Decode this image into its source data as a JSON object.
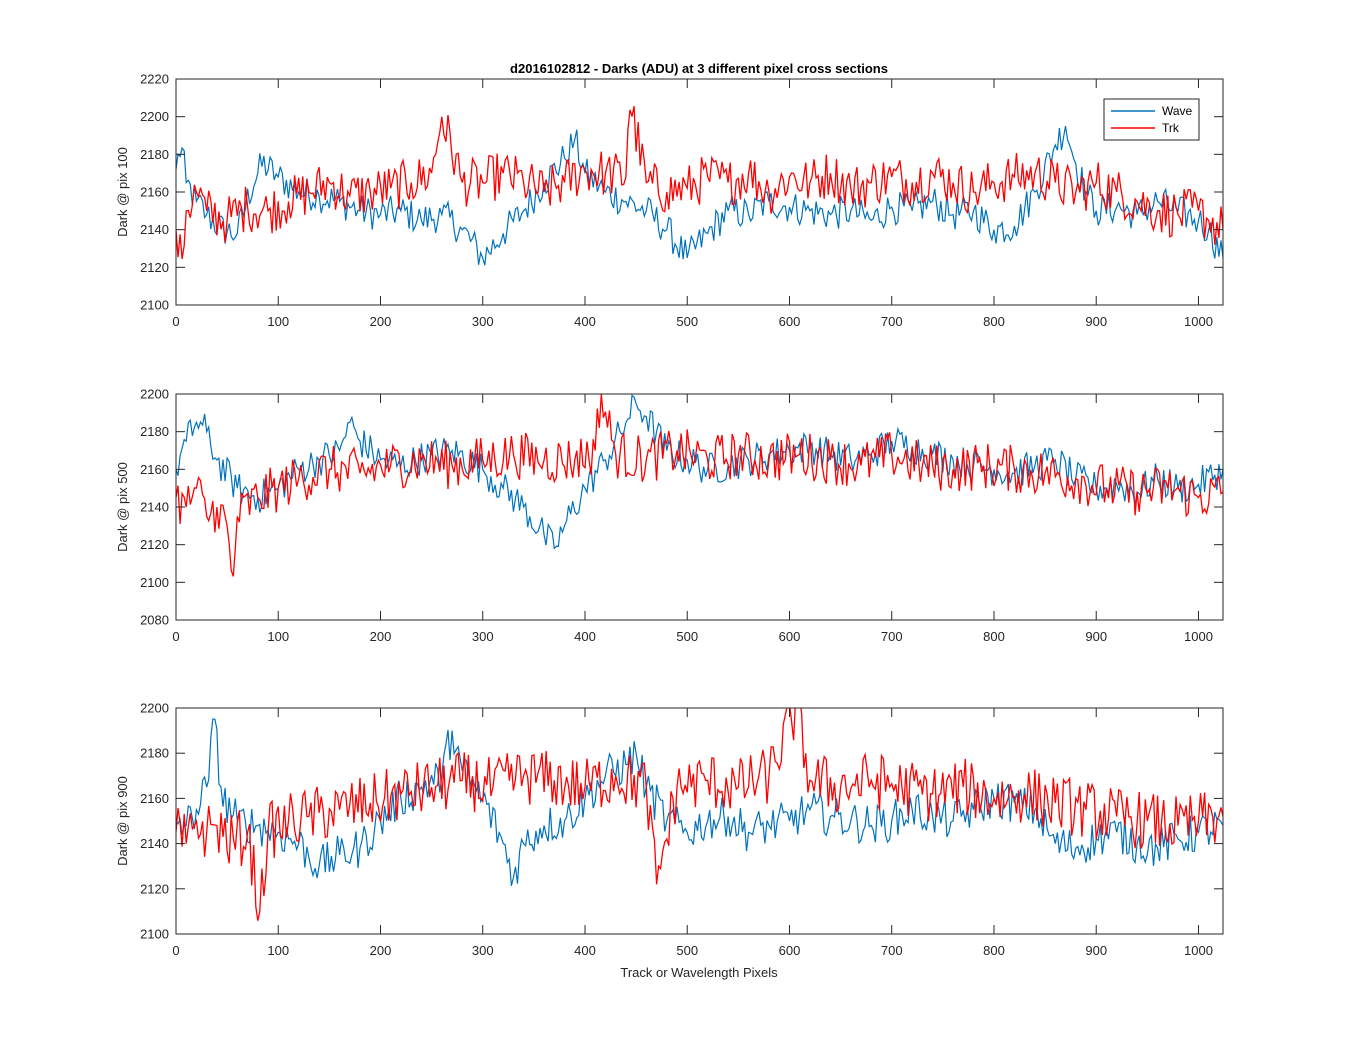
{
  "chart_data": {
    "type": "line",
    "title": "d2016102812 - Darks (ADU) at 3 different pixel cross sections",
    "xlabel": "Track or Wavelength Pixels",
    "xlim": [
      0,
      1024
    ],
    "xticks": [
      0,
      100,
      200,
      300,
      400,
      500,
      600,
      700,
      800,
      900,
      1000
    ],
    "grid": false,
    "legend": {
      "placement": "top-right",
      "entries": [
        "Wave",
        "Trk"
      ]
    },
    "colors": {
      "Wave": "#0072BD",
      "Trk": "#FF0000",
      "axes": "#262626"
    },
    "panels": [
      {
        "ylabel": "Dark @ pix 100",
        "ylim": [
          2100,
          2220
        ],
        "yticks": [
          2100,
          2120,
          2140,
          2160,
          2180,
          2200,
          2220
        ],
        "series": [
          {
            "name": "Wave",
            "x": [
              0,
              5,
              10,
              20,
              30,
              45,
              60,
              75,
              85,
              100,
              120,
              140,
              160,
              180,
              200,
              220,
              240,
              260,
              280,
              300,
              320,
              340,
              360,
              380,
              390,
              400,
              420,
              440,
              460,
              480,
              500,
              520,
              540,
              560,
              580,
              600,
              620,
              640,
              660,
              680,
              700,
              720,
              740,
              760,
              780,
              800,
              820,
              840,
              860,
              870,
              880,
              890,
              900,
              920,
              940,
              960,
              980,
              1000,
              1010,
              1024
            ],
            "values": [
              2172,
              2185,
              2165,
              2155,
              2148,
              2140,
              2138,
              2165,
              2175,
              2168,
              2160,
              2158,
              2155,
              2150,
              2148,
              2150,
              2145,
              2148,
              2140,
              2125,
              2138,
              2150,
              2165,
              2178,
              2188,
              2170,
              2160,
              2155,
              2150,
              2140,
              2125,
              2138,
              2150,
              2148,
              2155,
              2152,
              2150,
              2148,
              2150,
              2145,
              2152,
              2150,
              2155,
              2148,
              2150,
              2140,
              2142,
              2160,
              2185,
              2195,
              2175,
              2160,
              2150,
              2152,
              2148,
              2155,
              2150,
              2145,
              2140,
              2125
            ]
          },
          {
            "name": "Trk",
            "x": [
              0,
              5,
              10,
              20,
              30,
              50,
              70,
              90,
              110,
              130,
              150,
              170,
              190,
              210,
              230,
              250,
              260,
              280,
              300,
              320,
              340,
              360,
              380,
              400,
              420,
              440,
              443,
              460,
              480,
              500,
              520,
              540,
              560,
              580,
              600,
              620,
              640,
              660,
              680,
              700,
              720,
              740,
              760,
              780,
              800,
              820,
              840,
              860,
              880,
              900,
              920,
              940,
              960,
              980,
              1000,
              1010,
              1024
            ],
            "values": [
              2140,
              2122,
              2150,
              2160,
              2150,
              2145,
              2152,
              2150,
              2155,
              2160,
              2165,
              2158,
              2160,
              2162,
              2165,
              2170,
              2200,
              2165,
              2165,
              2170,
              2165,
              2160,
              2165,
              2172,
              2170,
              2168,
              2210,
              2165,
              2160,
              2162,
              2168,
              2165,
              2170,
              2160,
              2168,
              2165,
              2170,
              2162,
              2165,
              2168,
              2165,
              2170,
              2165,
              2160,
              2165,
              2168,
              2170,
              2165,
              2160,
              2165,
              2160,
              2155,
              2150,
              2148,
              2150,
              2145,
              2140
            ]
          }
        ]
      },
      {
        "ylabel": "Dark @ pix 500",
        "ylim": [
          2080,
          2200
        ],
        "yticks": [
          2080,
          2100,
          2120,
          2140,
          2160,
          2180,
          2200
        ],
        "series": [
          {
            "name": "Wave",
            "x": [
              0,
              10,
              20,
              30,
              40,
              60,
              80,
              100,
              120,
              140,
              160,
              170,
              180,
              200,
              220,
              250,
              270,
              300,
              320,
              340,
              360,
              370,
              380,
              400,
              420,
              440,
              450,
              460,
              480,
              500,
              520,
              540,
              560,
              580,
              600,
              620,
              640,
              660,
              680,
              700,
              720,
              740,
              760,
              780,
              800,
              820,
              840,
              860,
              880,
              900,
              920,
              940,
              960,
              980,
              1000,
              1024
            ],
            "values": [
              2160,
              2175,
              2185,
              2180,
              2165,
              2150,
              2145,
              2150,
              2160,
              2165,
              2170,
              2185,
              2175,
              2165,
              2162,
              2168,
              2170,
              2160,
              2150,
              2140,
              2125,
              2118,
              2130,
              2150,
              2165,
              2185,
              2195,
              2188,
              2170,
              2165,
              2160,
              2162,
              2165,
              2168,
              2170,
              2172,
              2168,
              2165,
              2168,
              2175,
              2172,
              2168,
              2165,
              2162,
              2160,
              2158,
              2162,
              2165,
              2155,
              2150,
              2152,
              2148,
              2155,
              2150,
              2152,
              2160
            ]
          },
          {
            "name": "Trk",
            "x": [
              0,
              10,
              20,
              30,
              40,
              50,
              55,
              60,
              80,
              100,
              120,
              150,
              180,
              210,
              240,
              270,
              300,
              330,
              360,
              390,
              410,
              415,
              430,
              460,
              490,
              520,
              550,
              580,
              610,
              640,
              670,
              700,
              730,
              760,
              790,
              820,
              850,
              880,
              910,
              940,
              970,
              1000,
              1024
            ],
            "values": [
              2145,
              2140,
              2150,
              2135,
              2140,
              2130,
              2095,
              2135,
              2145,
              2150,
              2155,
              2160,
              2158,
              2162,
              2165,
              2162,
              2165,
              2168,
              2165,
              2165,
              2170,
              2200,
              2168,
              2165,
              2170,
              2165,
              2168,
              2165,
              2168,
              2165,
              2162,
              2168,
              2162,
              2160,
              2162,
              2160,
              2158,
              2155,
              2150,
              2148,
              2150,
              2145,
              2148
            ]
          }
        ]
      },
      {
        "ylabel": "Dark @ pix 900",
        "ylim": [
          2100,
          2200
        ],
        "yticks": [
          2100,
          2120,
          2140,
          2160,
          2180,
          2200
        ],
        "series": [
          {
            "name": "Wave",
            "x": [
              0,
              10,
              20,
              30,
              38,
              45,
              60,
              80,
              100,
              120,
              140,
              160,
              180,
              200,
              220,
              240,
              260,
              270,
              280,
              300,
              320,
              330,
              340,
              360,
              380,
              400,
              420,
              440,
              450,
              460,
              480,
              500,
              520,
              540,
              560,
              580,
              600,
              620,
              640,
              660,
              680,
              700,
              720,
              740,
              760,
              780,
              800,
              820,
              840,
              860,
              880,
              900,
              920,
              940,
              960,
              980,
              1000,
              1024
            ],
            "values": [
              2150,
              2148,
              2155,
              2165,
              2195,
              2160,
              2150,
              2148,
              2145,
              2140,
              2130,
              2135,
              2138,
              2150,
              2160,
              2165,
              2170,
              2190,
              2172,
              2160,
              2140,
              2125,
              2140,
              2148,
              2150,
              2160,
              2170,
              2175,
              2180,
              2165,
              2150,
              2145,
              2150,
              2152,
              2145,
              2148,
              2150,
              2155,
              2152,
              2150,
              2148,
              2150,
              2155,
              2152,
              2150,
              2155,
              2160,
              2158,
              2155,
              2140,
              2138,
              2142,
              2145,
              2140,
              2138,
              2142,
              2145,
              2148
            ]
          },
          {
            "name": "Trk",
            "x": [
              0,
              10,
              20,
              30,
              40,
              55,
              70,
              82,
              90,
              110,
              130,
              160,
              190,
              220,
              250,
              280,
              310,
              340,
              370,
              400,
              430,
              460,
              470,
              490,
              520,
              550,
              580,
              607,
              620,
              650,
              680,
              710,
              740,
              770,
              800,
              830,
              860,
              890,
              920,
              950,
              980,
              1000,
              1024
            ],
            "values": [
              2145,
              2140,
              2150,
              2145,
              2148,
              2140,
              2145,
              2110,
              2145,
              2150,
              2152,
              2155,
              2158,
              2162,
              2165,
              2168,
              2165,
              2170,
              2168,
              2165,
              2170,
              2165,
              2122,
              2165,
              2168,
              2165,
              2170,
              2200,
              2168,
              2165,
              2168,
              2165,
              2162,
              2165,
              2160,
              2162,
              2158,
              2155,
              2152,
              2150,
              2148,
              2150,
              2152
            ]
          }
        ]
      }
    ]
  }
}
